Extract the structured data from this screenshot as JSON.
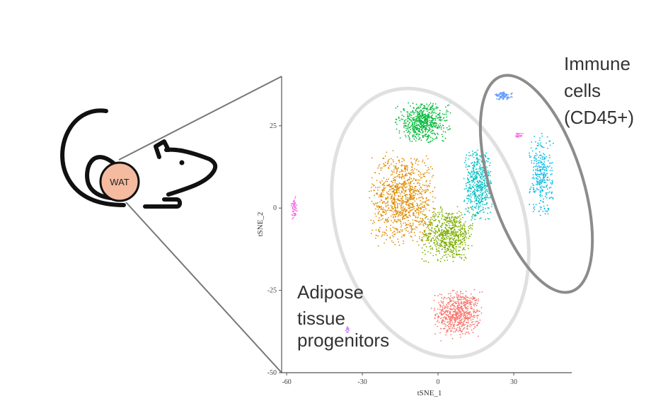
{
  "wat_label": "WAT",
  "annotations": {
    "immune": [
      "Immune",
      "cells",
      "(CD45+)"
    ],
    "adipose": [
      "Adipose",
      "tissue",
      "progenitors"
    ]
  },
  "chart_data": {
    "type": "scatter",
    "xlabel": "tSNE_1",
    "ylabel": "tSNE_2",
    "xlim": [
      -62,
      53
    ],
    "ylim": [
      -50,
      40
    ],
    "xticks": [
      -60,
      -30,
      0,
      30
    ],
    "xtick_labels": [
      "-60",
      "-30",
      "0",
      "30"
    ],
    "yticks": [
      -50,
      -25,
      0,
      25
    ],
    "ytick_labels": [
      "-50",
      "-25",
      "0",
      "25"
    ],
    "grid": false,
    "legend": "none",
    "clusters": [
      {
        "color": "#f8766d",
        "center": [
          8,
          -32
        ],
        "spread": [
          8,
          6
        ],
        "n": 650
      },
      {
        "color": "#7cae00",
        "center": [
          4,
          -8
        ],
        "spread": [
          9,
          7
        ],
        "n": 650
      },
      {
        "color": "#de8c00",
        "center": [
          -14,
          3
        ],
        "spread": [
          11,
          12
        ],
        "n": 1000
      },
      {
        "color": "#00ba38",
        "center": [
          -6,
          26
        ],
        "spread": [
          9,
          5
        ],
        "n": 600
      },
      {
        "color": "#00bfc4",
        "center": [
          16,
          7
        ],
        "spread": [
          5,
          9
        ],
        "n": 500
      },
      {
        "color": "#00b8e7",
        "center": [
          41,
          10
        ],
        "spread": [
          4,
          11
        ],
        "n": 300
      },
      {
        "color": "#619cff",
        "center": [
          26,
          34
        ],
        "spread": [
          3,
          1
        ],
        "n": 90
      },
      {
        "color": "#f564e3",
        "center": [
          -57,
          0
        ],
        "spread": [
          1,
          3
        ],
        "n": 50
      },
      {
        "color": "#f564e3",
        "center": [
          32,
          22
        ],
        "spread": [
          1.5,
          0.8
        ],
        "n": 20
      },
      {
        "color": "#c77cff",
        "center": [
          -36,
          -37
        ],
        "spread": [
          0.8,
          0.8
        ],
        "n": 15
      }
    ]
  }
}
